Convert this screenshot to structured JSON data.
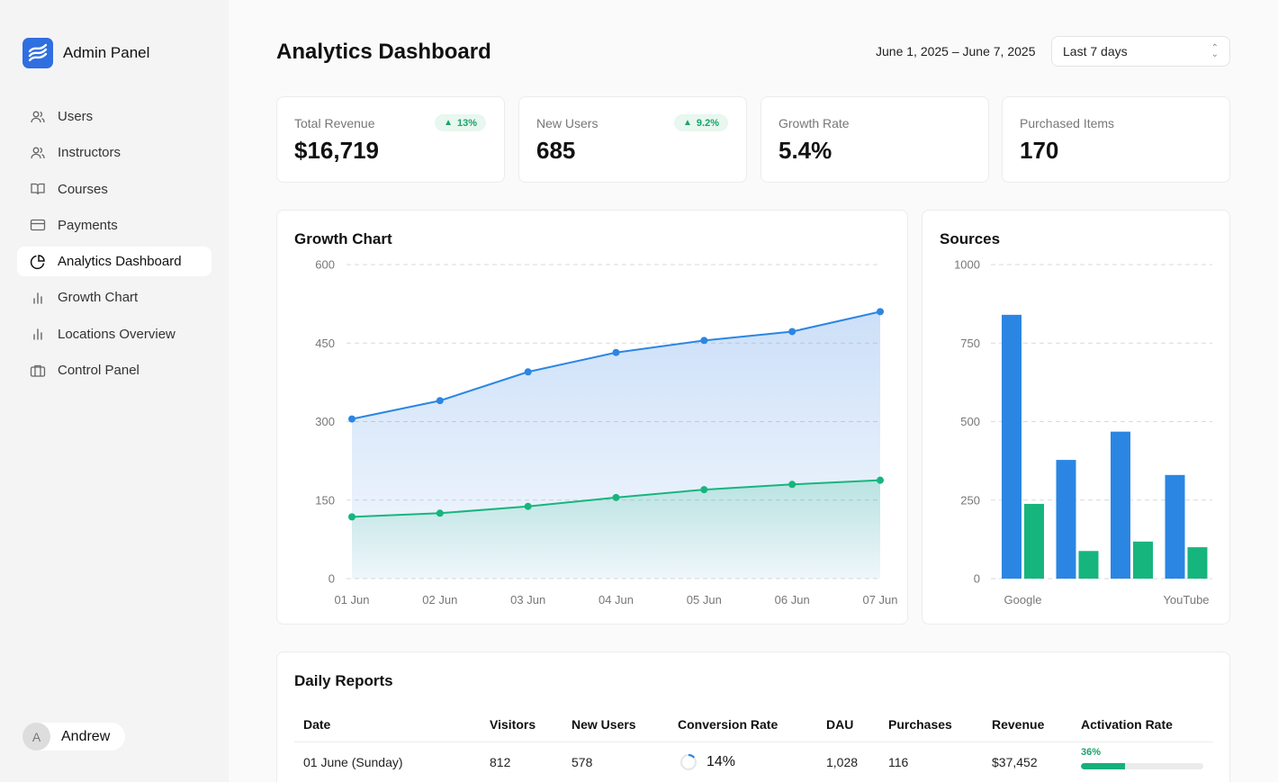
{
  "app": {
    "title": "Admin Panel"
  },
  "sidebar": {
    "items": [
      {
        "label": "Users",
        "icon": "users-icon",
        "active": false
      },
      {
        "label": "Instructors",
        "icon": "users-icon",
        "active": false
      },
      {
        "label": "Courses",
        "icon": "book-icon",
        "active": false
      },
      {
        "label": "Payments",
        "icon": "credit-card-icon",
        "active": false
      },
      {
        "label": "Analytics Dashboard",
        "icon": "pie-chart-icon",
        "active": true
      },
      {
        "label": "Growth Chart",
        "icon": "bar-chart-icon",
        "active": false
      },
      {
        "label": "Locations Overview",
        "icon": "bar-chart-icon",
        "active": false
      },
      {
        "label": "Control Panel",
        "icon": "briefcase-icon",
        "active": false
      }
    ],
    "user": {
      "initial": "A",
      "name": "Andrew"
    }
  },
  "header": {
    "title": "Analytics Dashboard",
    "date_range": "June 1, 2025 – June 7, 2025",
    "range_select": "Last 7 days"
  },
  "stats": [
    {
      "label": "Total Revenue",
      "value": "$16,719",
      "badge": "13%"
    },
    {
      "label": "New Users",
      "value": "685",
      "badge": "9.2%"
    },
    {
      "label": "Growth Rate",
      "value": "5.4%",
      "badge": ""
    },
    {
      "label": "Purchased Items",
      "value": "170",
      "badge": ""
    }
  ],
  "colors": {
    "blue": "#2b86e3",
    "green": "#17b57e",
    "accent": "#2f6fe0"
  },
  "chart_data": [
    {
      "type": "area",
      "title": "Growth Chart",
      "categories": [
        "01 Jun",
        "02 Jun",
        "03 Jun",
        "04 Jun",
        "05 Jun",
        "06 Jun",
        "07 Jun"
      ],
      "ylim": [
        0,
        600
      ],
      "yticks": [
        0,
        150,
        300,
        450,
        600
      ],
      "grid": true,
      "series": [
        {
          "values": [
            305,
            340,
            395,
            432,
            455,
            472,
            510
          ]
        },
        {
          "values": [
            118,
            125,
            138,
            155,
            170,
            180,
            188
          ]
        }
      ]
    },
    {
      "type": "bar",
      "title": "Sources",
      "categories": [
        "Google",
        "",
        "",
        "YouTube"
      ],
      "ylim": [
        0,
        1000
      ],
      "yticks": [
        0,
        250,
        500,
        750,
        1000
      ],
      "grid": true,
      "series": [
        {
          "values": [
            840,
            378,
            468,
            330
          ]
        },
        {
          "values": [
            238,
            88,
            118,
            100
          ]
        }
      ]
    }
  ],
  "table": {
    "title": "Daily Reports",
    "columns": [
      "Date",
      "Visitors",
      "New Users",
      "Conversion Rate",
      "DAU",
      "Purchases",
      "Revenue",
      "Activation Rate"
    ],
    "rows": [
      {
        "date": "01 June (Sunday)",
        "visitors": "812",
        "new_users": "578",
        "conversion": "14%",
        "conversion_fraction": 0.14,
        "dau": "1,028",
        "purchases": "116",
        "revenue": "$37,452",
        "activation": "36%",
        "activation_fraction": 0.36
      }
    ]
  }
}
